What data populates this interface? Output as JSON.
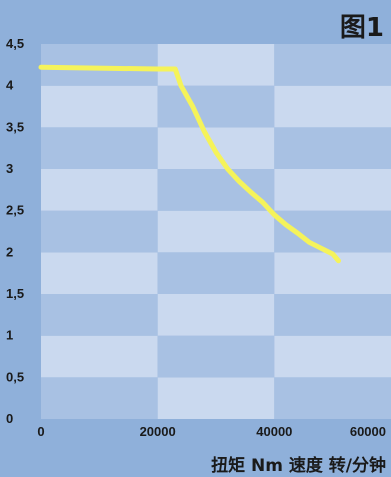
{
  "figure_label": "图1",
  "axis_caption": "扭矩 Nm  速度 转/分钟",
  "colors": {
    "page_background": "#8fb0da",
    "cell_light": "#cad9ef",
    "cell_dark": "#a8c1e3",
    "curve": "#f5f35a"
  },
  "chart_data": {
    "type": "line",
    "title": "图1",
    "xlabel": "速度 转/分钟",
    "ylabel": "扭矩 Nm",
    "xlim": [
      0,
      60000
    ],
    "ylim": [
      0,
      4.5
    ],
    "x_ticks": [
      "0",
      "20000",
      "40000",
      "60000"
    ],
    "y_ticks": [
      "0",
      "0,5",
      "1",
      "1,5",
      "2",
      "2,5",
      "3",
      "3,5",
      "4",
      "4,5"
    ],
    "grid": "checkerboard background",
    "series": [
      {
        "x": [
          0,
          20000,
          23000,
          24000,
          26000,
          28000,
          30000,
          32000,
          34000,
          36000,
          38000,
          40000,
          42000,
          44000,
          46000,
          48000,
          50000,
          51000
        ],
        "y": [
          4.22,
          4.2,
          4.2,
          4.0,
          3.75,
          3.45,
          3.2,
          3.0,
          2.85,
          2.72,
          2.6,
          2.45,
          2.33,
          2.23,
          2.12,
          2.05,
          1.98,
          1.9
        ]
      }
    ]
  }
}
